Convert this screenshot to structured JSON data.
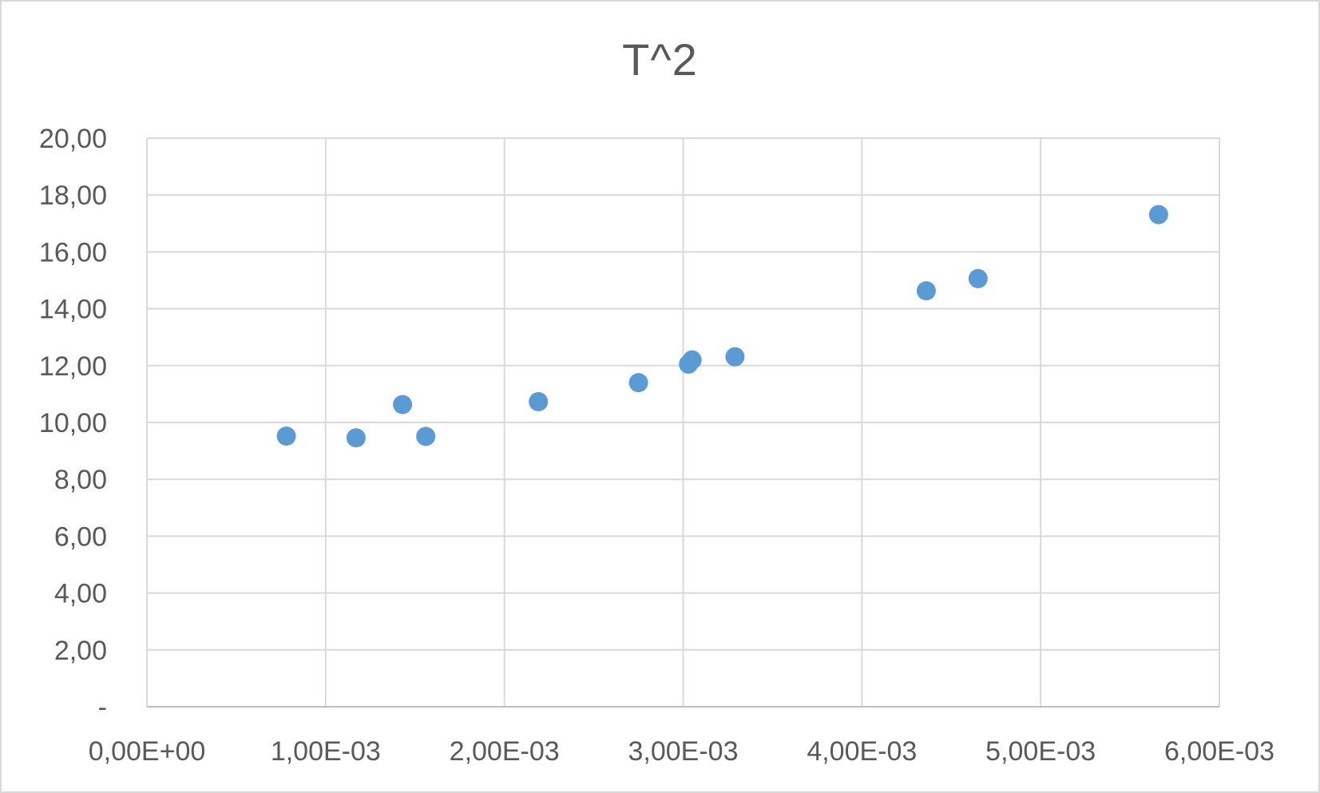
{
  "chart_data": {
    "type": "scatter",
    "title": "T^2",
    "xlabel": "",
    "ylabel": "",
    "xlim": [
      0,
      0.006
    ],
    "ylim": [
      0,
      20
    ],
    "grid": true,
    "x_ticks": [
      {
        "value": 0,
        "label": "0,00E+00"
      },
      {
        "value": 0.001,
        "label": "1,00E-03"
      },
      {
        "value": 0.002,
        "label": "2,00E-03"
      },
      {
        "value": 0.003,
        "label": "3,00E-03"
      },
      {
        "value": 0.004,
        "label": "4,00E-03"
      },
      {
        "value": 0.005,
        "label": "5,00E-03"
      },
      {
        "value": 0.006,
        "label": "6,00E-03"
      }
    ],
    "y_ticks": [
      {
        "value": 0,
        "label": "-"
      },
      {
        "value": 2,
        "label": "2,00"
      },
      {
        "value": 4,
        "label": "4,00"
      },
      {
        "value": 6,
        "label": "6,00"
      },
      {
        "value": 8,
        "label": "8,00"
      },
      {
        "value": 10,
        "label": "10,00"
      },
      {
        "value": 12,
        "label": "12,00"
      },
      {
        "value": 14,
        "label": "14,00"
      },
      {
        "value": 16,
        "label": "16,00"
      },
      {
        "value": 18,
        "label": "18,00"
      },
      {
        "value": 20,
        "label": "20,00"
      }
    ],
    "series": [
      {
        "color": "#5b9bd5",
        "points": [
          {
            "x": 0.00078,
            "y": 9.52
          },
          {
            "x": 0.00117,
            "y": 9.46
          },
          {
            "x": 0.00143,
            "y": 10.63
          },
          {
            "x": 0.00156,
            "y": 9.51
          },
          {
            "x": 0.00219,
            "y": 10.73
          },
          {
            "x": 0.00275,
            "y": 11.4
          },
          {
            "x": 0.00303,
            "y": 12.05
          },
          {
            "x": 0.00305,
            "y": 12.2
          },
          {
            "x": 0.00329,
            "y": 12.31
          },
          {
            "x": 0.00436,
            "y": 14.63
          },
          {
            "x": 0.00465,
            "y": 15.06
          },
          {
            "x": 0.00566,
            "y": 17.31
          }
        ]
      }
    ]
  }
}
